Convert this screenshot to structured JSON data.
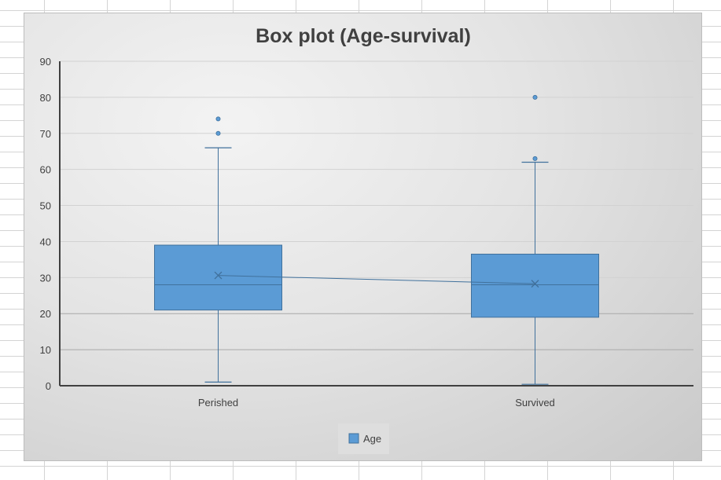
{
  "chart_data": {
    "type": "box",
    "title": "Box plot (Age-survival)",
    "xlabel": "",
    "ylabel": "",
    "ylim": [
      0,
      90
    ],
    "y_ticks": [
      0,
      10,
      20,
      30,
      40,
      50,
      60,
      70,
      80,
      90
    ],
    "grid": true,
    "legend_position": "bottom",
    "categories": [
      "Perished",
      "Survived"
    ],
    "series": [
      {
        "name": "Age",
        "color": "#5b9bd5",
        "boxes": [
          {
            "category": "Perished",
            "min": 1,
            "q1": 21,
            "median": 28,
            "q3": 39,
            "max": 66,
            "mean": 30.6,
            "outliers": [
              70,
              74
            ]
          },
          {
            "category": "Survived",
            "min": 0.4,
            "q1": 19,
            "median": 28,
            "q3": 36.5,
            "max": 62,
            "mean": 28.3,
            "outliers": [
              63,
              80
            ]
          }
        ]
      }
    ]
  }
}
